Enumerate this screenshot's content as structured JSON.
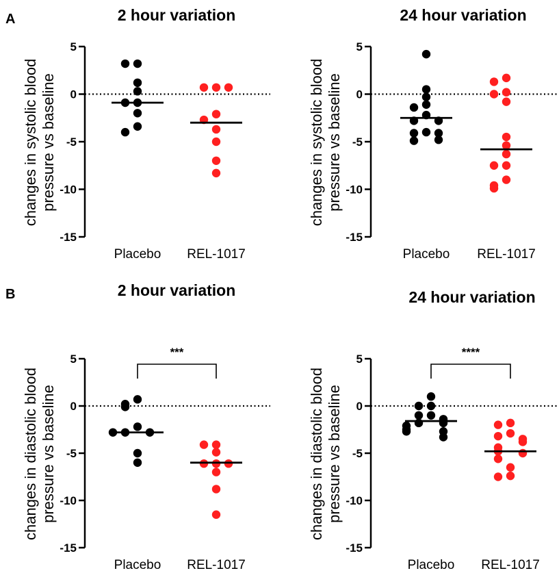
{
  "panel_letters": [
    "A",
    "B"
  ],
  "chart_data": [
    {
      "type": "scatter",
      "panel": "A",
      "title": "2 hour variation",
      "ylabel_lines": [
        "changes in systolic blood",
        "pressure vs baseline"
      ],
      "ylim": [
        -15,
        5
      ],
      "yticks": [
        "5",
        "0",
        "-5",
        "-10",
        "-15"
      ],
      "reference_line": 0,
      "categories": [
        "Placebo",
        "REL-1017"
      ],
      "series": [
        {
          "category": "Placebo",
          "color": "#000000",
          "median": -0.9,
          "values": [
            3.2,
            3.2,
            1.2,
            0.3,
            -0.9,
            -0.9,
            -2.0,
            -3.4,
            -4.0
          ]
        },
        {
          "category": "REL-1017",
          "color": "#ff2020",
          "median": -3.0,
          "values": [
            0.7,
            0.7,
            0.7,
            -2.1,
            -2.7,
            -3.7,
            -5.0,
            -7.0,
            -8.3
          ]
        }
      ],
      "significance": null
    },
    {
      "type": "scatter",
      "panel": "A",
      "title": "24 hour variation",
      "ylabel_lines": [
        "changes in systolic blood",
        "pressure vs baseline"
      ],
      "ylim": [
        -15,
        5
      ],
      "yticks": [
        "5",
        "0",
        "-5",
        "-10",
        "-15"
      ],
      "reference_line": 0,
      "categories": [
        "Placebo",
        "REL-1017"
      ],
      "series": [
        {
          "category": "Placebo",
          "color": "#000000",
          "median": -2.5,
          "values": [
            4.2,
            0.5,
            -0.3,
            -1.1,
            -1.4,
            -2.2,
            -2.8,
            -2.8,
            -4.0,
            -4.1,
            -4.1,
            -4.8,
            -4.9
          ]
        },
        {
          "category": "REL-1017",
          "color": "#ff2020",
          "median": -5.8,
          "values": [
            1.7,
            1.3,
            0.2,
            0.0,
            -0.8,
            -4.5,
            -5.4,
            -6.3,
            -7.5,
            -7.5,
            -9.0,
            -9.6,
            -9.9
          ]
        }
      ],
      "significance": null
    },
    {
      "type": "scatter",
      "panel": "B",
      "title": "2 hour variation",
      "ylabel_lines": [
        "changes in diastolic blood",
        "pressure vs baseline"
      ],
      "ylim": [
        -15,
        5
      ],
      "yticks": [
        "5",
        "0",
        "-5",
        "-10",
        "-15"
      ],
      "reference_line": 0,
      "categories": [
        "Placebo",
        "REL-1017"
      ],
      "series": [
        {
          "category": "Placebo",
          "color": "#000000",
          "median": -2.8,
          "values": [
            0.7,
            0.2,
            -0.1,
            -2.2,
            -2.8,
            -2.8,
            -2.8,
            -5.0,
            -6.0
          ]
        },
        {
          "category": "REL-1017",
          "color": "#ff2020",
          "median": -6.0,
          "values": [
            -4.1,
            -4.1,
            -4.9,
            -6.1,
            -6.1,
            -6.1,
            -7.0,
            -8.8,
            -11.5
          ]
        }
      ],
      "significance": {
        "label": "***"
      }
    },
    {
      "type": "scatter",
      "panel": "B",
      "title": "24 hour variation",
      "ylabel_lines": [
        "changes in diastolic blood",
        "pressure vs baseline"
      ],
      "ylim": [
        -15,
        5
      ],
      "yticks": [
        "5",
        "0",
        "-5",
        "-10",
        "-15"
      ],
      "reference_line": 0,
      "categories": [
        "Placebo",
        "REL-1017"
      ],
      "series": [
        {
          "category": "Placebo",
          "color": "#000000",
          "median": -1.6,
          "values": [
            1.0,
            0.0,
            0.0,
            -1.0,
            -1.0,
            -1.4,
            -1.8,
            -1.8,
            -2.1,
            -2.5,
            -2.7,
            -2.7,
            -3.3
          ]
        },
        {
          "category": "REL-1017",
          "color": "#ff2020",
          "median": -4.8,
          "values": [
            -1.8,
            -2.0,
            -2.9,
            -3.2,
            -3.5,
            -3.8,
            -4.4,
            -4.8,
            -5.0,
            -5.6,
            -6.5,
            -7.4,
            -7.5
          ]
        }
      ],
      "significance": {
        "label": "****"
      }
    }
  ]
}
